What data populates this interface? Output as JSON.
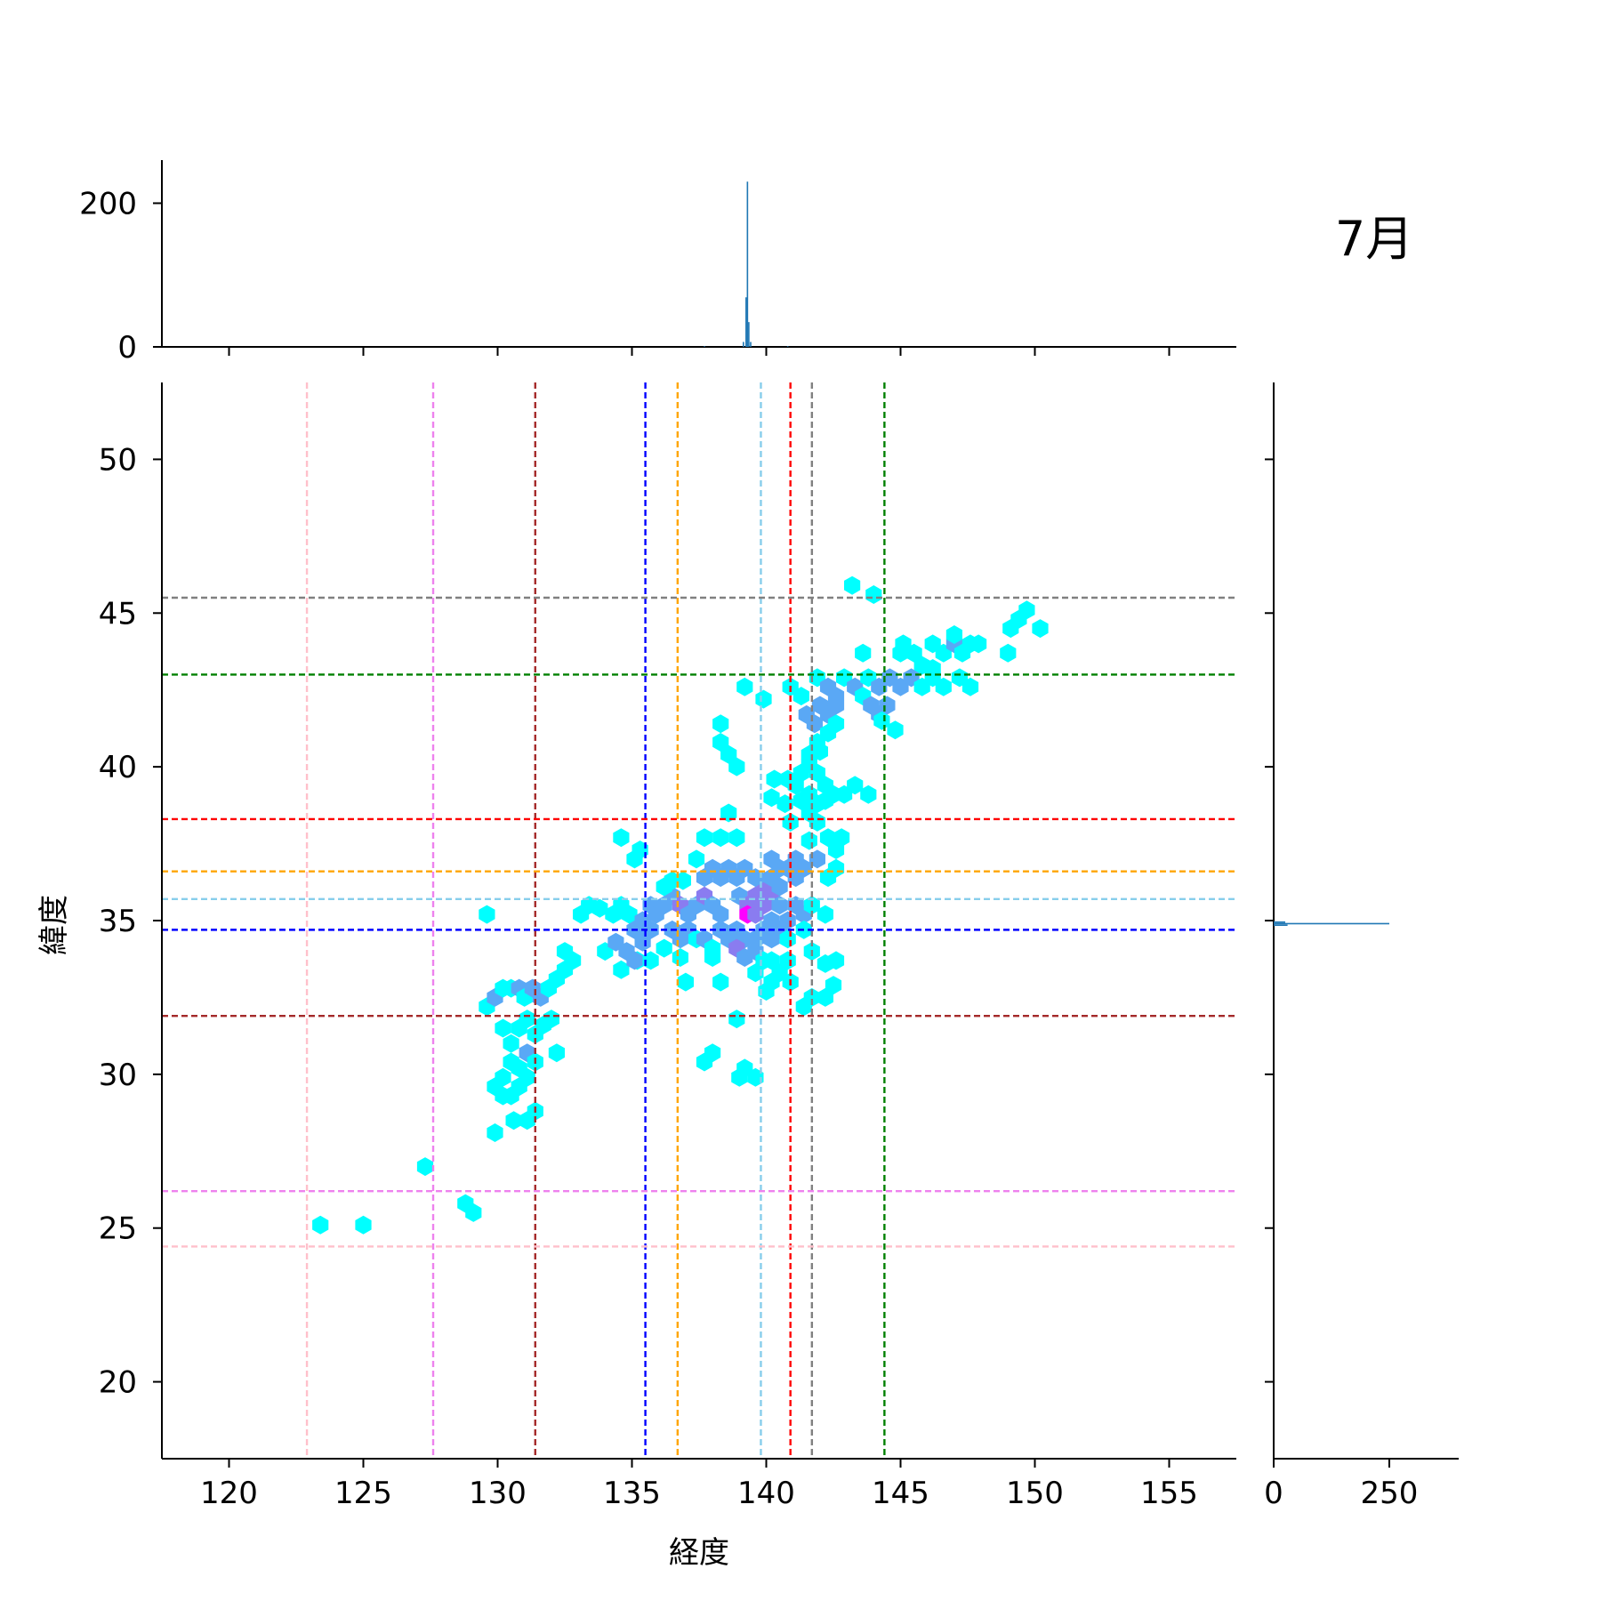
{
  "chart_data": {
    "type": "hexbin",
    "title": "7月",
    "xlabel": "経度",
    "ylabel": "緯度",
    "xlim": [
      117.5,
      157.5
    ],
    "ylim": [
      17.5,
      52.5
    ],
    "xticks": [
      120,
      125,
      130,
      135,
      140,
      145,
      150,
      155
    ],
    "yticks": [
      20,
      25,
      30,
      35,
      40,
      45,
      50
    ],
    "top_hist": {
      "yticks": [
        0,
        200
      ],
      "ylim": [
        0,
        260
      ],
      "peak": {
        "x": 139.3,
        "count": 230
      }
    },
    "right_hist": {
      "xticks": [
        0,
        250
      ],
      "xlim": [
        0,
        400
      ],
      "peak": {
        "y": 34.9,
        "count": 250
      }
    },
    "colors": {
      "low": "#00ffff",
      "mid": "#5aa8f5",
      "high": "#8a7cf0",
      "max": "#ff00ff",
      "hist": "#1f77b4"
    },
    "vlines": [
      {
        "x": 122.9,
        "color": "#ffc0cb"
      },
      {
        "x": 127.6,
        "color": "#ee82ee"
      },
      {
        "x": 131.4,
        "color": "#a52a2a"
      },
      {
        "x": 135.5,
        "color": "#0000ff"
      },
      {
        "x": 136.7,
        "color": "#ffa500"
      },
      {
        "x": 139.8,
        "color": "#87ceeb"
      },
      {
        "x": 140.9,
        "color": "#ff0000"
      },
      {
        "x": 141.7,
        "color": "#808080"
      },
      {
        "x": 144.4,
        "color": "#008000"
      }
    ],
    "hlines": [
      {
        "y": 45.5,
        "color": "#808080"
      },
      {
        "y": 43.0,
        "color": "#008000"
      },
      {
        "y": 38.3,
        "color": "#ff0000"
      },
      {
        "y": 36.6,
        "color": "#ffa500"
      },
      {
        "y": 35.7,
        "color": "#87ceeb"
      },
      {
        "y": 34.7,
        "color": "#0000ff"
      },
      {
        "y": 31.9,
        "color": "#a52a2a"
      },
      {
        "y": 26.2,
        "color": "#ee82ee"
      },
      {
        "y": 24.4,
        "color": "#ffc0cb"
      }
    ],
    "points": [
      [
        123.4,
        25.1,
        1
      ],
      [
        125.0,
        25.1,
        1
      ],
      [
        127.3,
        27.0,
        1
      ],
      [
        128.8,
        25.8,
        1
      ],
      [
        129.1,
        25.5,
        1
      ],
      [
        129.6,
        35.2,
        1
      ],
      [
        129.9,
        28.1,
        1
      ],
      [
        129.6,
        32.2,
        1
      ],
      [
        129.9,
        32.5,
        2
      ],
      [
        130.2,
        32.8,
        1
      ],
      [
        130.5,
        32.8,
        1
      ],
      [
        130.8,
        32.8,
        2
      ],
      [
        131.0,
        32.5,
        1
      ],
      [
        131.3,
        32.8,
        2
      ],
      [
        131.6,
        32.5,
        2
      ],
      [
        131.9,
        32.8,
        1
      ],
      [
        132.2,
        33.1,
        1
      ],
      [
        132.5,
        33.4,
        1
      ],
      [
        132.8,
        33.7,
        1
      ],
      [
        132.5,
        34.0,
        1
      ],
      [
        130.2,
        31.5,
        1
      ],
      [
        130.5,
        31.0,
        1
      ],
      [
        130.8,
        31.5,
        1
      ],
      [
        131.1,
        31.8,
        1
      ],
      [
        131.4,
        31.3,
        1
      ],
      [
        131.7,
        31.6,
        1
      ],
      [
        132.0,
        31.8,
        1
      ],
      [
        131.1,
        30.7,
        2
      ],
      [
        130.8,
        30.2,
        1
      ],
      [
        131.4,
        30.4,
        1
      ],
      [
        130.5,
        30.4,
        1
      ],
      [
        130.2,
        29.9,
        1
      ],
      [
        129.9,
        29.6,
        1
      ],
      [
        130.5,
        29.3,
        1
      ],
      [
        130.8,
        29.6,
        1
      ],
      [
        131.1,
        29.9,
        1
      ],
      [
        130.2,
        29.3,
        1
      ],
      [
        130.6,
        28.5,
        1
      ],
      [
        131.1,
        28.5,
        1
      ],
      [
        131.4,
        28.8,
        1
      ],
      [
        132.2,
        30.7,
        1
      ],
      [
        133.1,
        35.2,
        1
      ],
      [
        133.4,
        35.5,
        1
      ],
      [
        133.8,
        35.4,
        1
      ],
      [
        134.3,
        35.2,
        1
      ],
      [
        134.6,
        35.5,
        1
      ],
      [
        134.9,
        35.2,
        1
      ],
      [
        134.0,
        34.0,
        1
      ],
      [
        134.4,
        34.3,
        2
      ],
      [
        134.8,
        34.0,
        2
      ],
      [
        135.2,
        33.7,
        1
      ],
      [
        134.6,
        33.4,
        1
      ],
      [
        134.6,
        37.7,
        1
      ],
      [
        135.3,
        37.3,
        1
      ],
      [
        135.1,
        37.0,
        1
      ],
      [
        135.1,
        34.7,
        2
      ],
      [
        135.4,
        34.3,
        2
      ],
      [
        135.7,
        34.7,
        2
      ],
      [
        135.4,
        35.0,
        2
      ],
      [
        135.1,
        33.7,
        2
      ],
      [
        135.7,
        33.7,
        1
      ],
      [
        135.7,
        35.5,
        2
      ],
      [
        135.9,
        35.2,
        2
      ],
      [
        136.2,
        35.5,
        2
      ],
      [
        136.5,
        35.8,
        2
      ],
      [
        136.8,
        35.5,
        3
      ],
      [
        137.1,
        35.2,
        2
      ],
      [
        136.2,
        36.1,
        1
      ],
      [
        136.5,
        36.3,
        1
      ],
      [
        136.9,
        36.3,
        1
      ],
      [
        136.5,
        34.7,
        2
      ],
      [
        136.8,
        34.4,
        2
      ],
      [
        137.1,
        34.7,
        2
      ],
      [
        136.8,
        33.8,
        1
      ],
      [
        136.2,
        34.1,
        1
      ],
      [
        137.0,
        33.0,
        1
      ],
      [
        137.4,
        34.4,
        1
      ],
      [
        137.4,
        35.5,
        2
      ],
      [
        137.7,
        35.8,
        3
      ],
      [
        138.0,
        35.5,
        2
      ],
      [
        138.3,
        35.2,
        2
      ],
      [
        137.7,
        36.4,
        2
      ],
      [
        138.0,
        36.7,
        2
      ],
      [
        138.3,
        36.4,
        2
      ],
      [
        138.6,
        36.7,
        2
      ],
      [
        138.9,
        36.4,
        2
      ],
      [
        139.2,
        36.7,
        2
      ],
      [
        137.4,
        37.0,
        1
      ],
      [
        137.7,
        37.7,
        1
      ],
      [
        138.3,
        37.7,
        1
      ],
      [
        138.6,
        38.5,
        1
      ],
      [
        138.9,
        37.7,
        1
      ],
      [
        137.7,
        34.4,
        2
      ],
      [
        138.0,
        34.1,
        1
      ],
      [
        138.3,
        34.7,
        2
      ],
      [
        138.6,
        34.4,
        2
      ],
      [
        138.0,
        33.8,
        1
      ],
      [
        138.3,
        33.0,
        1
      ],
      [
        138.9,
        34.7,
        2
      ],
      [
        139.2,
        34.4,
        2
      ],
      [
        138.9,
        34.1,
        3
      ],
      [
        139.2,
        33.8,
        2
      ],
      [
        138.9,
        31.8,
        1
      ],
      [
        137.7,
        30.4,
        1
      ],
      [
        138.0,
        30.7,
        1
      ],
      [
        139.0,
        29.9,
        1
      ],
      [
        139.2,
        30.2,
        1
      ],
      [
        139.6,
        29.9,
        1
      ],
      [
        139.0,
        35.8,
        2
      ],
      [
        139.3,
        35.5,
        3
      ],
      [
        139.6,
        35.8,
        3
      ],
      [
        139.3,
        35.2,
        4
      ],
      [
        139.6,
        35.2,
        3
      ],
      [
        139.9,
        35.5,
        3
      ],
      [
        140.2,
        35.8,
        3
      ],
      [
        139.9,
        36.1,
        3
      ],
      [
        140.2,
        36.4,
        2
      ],
      [
        139.6,
        36.4,
        2
      ],
      [
        140.5,
        36.1,
        2
      ],
      [
        140.5,
        35.5,
        2
      ],
      [
        140.2,
        35.0,
        2
      ],
      [
        139.9,
        34.7,
        2
      ],
      [
        139.6,
        34.4,
        2
      ],
      [
        140.2,
        34.4,
        2
      ],
      [
        140.5,
        34.7,
        2
      ],
      [
        140.8,
        35.0,
        2
      ],
      [
        139.6,
        34.0,
        2
      ],
      [
        139.9,
        33.7,
        1
      ],
      [
        139.6,
        33.3,
        1
      ],
      [
        140.2,
        33.7,
        1
      ],
      [
        140.2,
        33.0,
        1
      ],
      [
        140.0,
        32.7,
        1
      ],
      [
        140.5,
        33.3,
        1
      ],
      [
        140.9,
        33.0,
        1
      ],
      [
        140.8,
        33.7,
        1
      ],
      [
        140.5,
        36.7,
        2
      ],
      [
        140.2,
        37.0,
        2
      ],
      [
        140.8,
        36.7,
        2
      ],
      [
        141.1,
        36.4,
        2
      ],
      [
        141.1,
        37.0,
        2
      ],
      [
        141.4,
        36.7,
        2
      ],
      [
        141.1,
        35.5,
        2
      ],
      [
        141.4,
        35.2,
        2
      ],
      [
        141.7,
        35.5,
        1
      ],
      [
        141.4,
        34.7,
        1
      ],
      [
        141.7,
        34.0,
        1
      ],
      [
        140.8,
        34.4,
        1
      ],
      [
        141.4,
        32.2,
        1
      ],
      [
        141.7,
        32.5,
        1
      ],
      [
        142.2,
        32.5,
        1
      ],
      [
        142.5,
        32.9,
        1
      ],
      [
        142.2,
        33.6,
        1
      ],
      [
        142.6,
        33.7,
        1
      ],
      [
        142.2,
        35.2,
        1
      ],
      [
        142.3,
        36.4,
        1
      ],
      [
        142.6,
        36.7,
        1
      ],
      [
        142.6,
        37.3,
        1
      ],
      [
        142.3,
        37.7,
        1
      ],
      [
        142.8,
        37.7,
        1
      ],
      [
        141.9,
        37.0,
        2
      ],
      [
        141.6,
        37.6,
        1
      ],
      [
        141.9,
        38.2,
        1
      ],
      [
        141.6,
        38.5,
        1
      ],
      [
        141.3,
        38.9,
        1
      ],
      [
        141.6,
        39.1,
        1
      ],
      [
        141.9,
        38.8,
        1
      ],
      [
        142.2,
        38.9,
        1
      ],
      [
        141.1,
        39.4,
        1
      ],
      [
        140.8,
        39.6,
        1
      ],
      [
        141.3,
        39.8,
        1
      ],
      [
        141.6,
        40.1,
        1
      ],
      [
        141.9,
        39.8,
        1
      ],
      [
        142.2,
        39.4,
        1
      ],
      [
        142.5,
        39.1,
        1
      ],
      [
        142.9,
        39.1,
        1
      ],
      [
        143.3,
        39.4,
        1
      ],
      [
        143.8,
        39.1,
        1
      ],
      [
        140.3,
        39.6,
        1
      ],
      [
        140.2,
        39.0,
        1
      ],
      [
        140.7,
        38.8,
        1
      ],
      [
        140.9,
        38.2,
        1
      ],
      [
        138.3,
        41.4,
        1
      ],
      [
        138.3,
        40.8,
        1
      ],
      [
        138.6,
        40.4,
        1
      ],
      [
        138.9,
        40.0,
        1
      ],
      [
        139.9,
        42.2,
        1
      ],
      [
        139.2,
        42.6,
        1
      ],
      [
        140.9,
        42.6,
        1
      ],
      [
        141.3,
        42.3,
        1
      ],
      [
        141.5,
        41.7,
        2
      ],
      [
        141.8,
        41.4,
        2
      ],
      [
        142.0,
        42.0,
        2
      ],
      [
        142.3,
        41.7,
        2
      ],
      [
        142.6,
        42.0,
        2
      ],
      [
        142.6,
        41.4,
        1
      ],
      [
        142.3,
        41.1,
        1
      ],
      [
        141.9,
        40.8,
        1
      ],
      [
        141.6,
        40.4,
        1
      ],
      [
        142.0,
        40.5,
        1
      ],
      [
        141.9,
        42.9,
        1
      ],
      [
        142.3,
        42.6,
        2
      ],
      [
        142.6,
        42.3,
        2
      ],
      [
        142.9,
        42.9,
        1
      ],
      [
        143.3,
        42.6,
        2
      ],
      [
        143.6,
        42.3,
        1
      ],
      [
        143.9,
        42.0,
        2
      ],
      [
        144.2,
        41.7,
        2
      ],
      [
        144.5,
        42.0,
        2
      ],
      [
        144.3,
        41.5,
        1
      ],
      [
        144.8,
        41.2,
        1
      ],
      [
        143.8,
        42.9,
        1
      ],
      [
        144.2,
        42.6,
        2
      ],
      [
        144.6,
        42.9,
        2
      ],
      [
        145.0,
        42.6,
        2
      ],
      [
        145.4,
        42.9,
        2
      ],
      [
        145.8,
        42.6,
        1
      ],
      [
        146.2,
        42.9,
        1
      ],
      [
        146.6,
        42.6,
        1
      ],
      [
        147.2,
        42.9,
        1
      ],
      [
        147.6,
        42.6,
        1
      ],
      [
        143.6,
        43.7,
        1
      ],
      [
        145.0,
        43.7,
        1
      ],
      [
        145.1,
        44.0,
        1
      ],
      [
        145.5,
        43.7,
        1
      ],
      [
        146.2,
        44.0,
        1
      ],
      [
        146.6,
        43.7,
        1
      ],
      [
        147.0,
        44.0,
        2
      ],
      [
        147.3,
        43.7,
        1
      ],
      [
        147.6,
        44.0,
        1
      ],
      [
        147.9,
        44.0,
        1
      ],
      [
        147.0,
        44.3,
        1
      ],
      [
        145.8,
        43.3,
        1
      ],
      [
        146.2,
        43.2,
        1
      ],
      [
        143.2,
        45.9,
        1
      ],
      [
        144.0,
        45.6,
        1
      ],
      [
        149.1,
        44.5,
        1
      ],
      [
        149.4,
        44.8,
        1
      ],
      [
        149.7,
        45.1,
        1
      ],
      [
        150.2,
        44.5,
        1
      ],
      [
        149.0,
        43.7,
        1
      ]
    ]
  }
}
